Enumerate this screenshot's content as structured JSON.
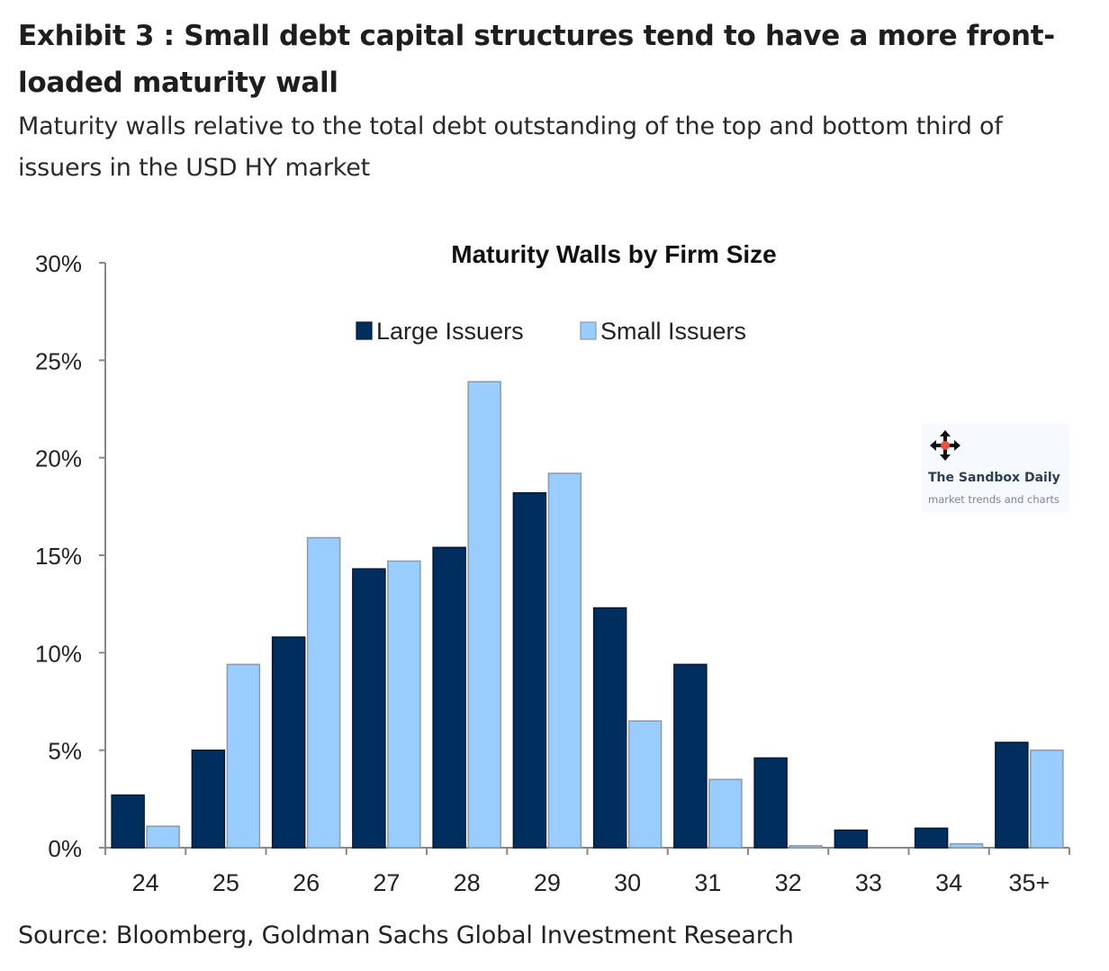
{
  "header": {
    "title": "Exhibit 3 : Small debt capital structures tend to have a more front-loaded maturity wall",
    "subtitle": "Maturity walls relative to the total debt outstanding of the top and bottom third of issuers in the USD HY market"
  },
  "footer": {
    "source": "Source: Bloomberg, Goldman Sachs Global Investment Research"
  },
  "watermark": {
    "name": "The Sandbox Daily",
    "tagline": "market trends and charts",
    "icon": "move-arrows-icon"
  },
  "chart_data": {
    "type": "bar",
    "title": "Maturity Walls by Firm Size",
    "xlabel": "",
    "ylabel": "",
    "categories": [
      "24",
      "25",
      "26",
      "27",
      "28",
      "29",
      "30",
      "31",
      "32",
      "33",
      "34",
      "35+"
    ],
    "series": [
      {
        "name": "Large Issuers",
        "color": "#002f5f",
        "values": [
          2.7,
          5.0,
          10.8,
          14.3,
          15.4,
          18.2,
          12.3,
          9.4,
          4.6,
          0.9,
          1.0,
          5.4
        ]
      },
      {
        "name": "Small Issuers",
        "color": "#99ccff",
        "values": [
          1.1,
          9.4,
          15.9,
          14.7,
          23.9,
          19.2,
          6.5,
          3.5,
          0.1,
          0.0,
          0.2,
          5.0
        ]
      }
    ],
    "ylim": [
      0,
      30
    ],
    "yticks": [
      0,
      5,
      10,
      15,
      20,
      25,
      30
    ],
    "ytick_labels": [
      "0%",
      "5%",
      "10%",
      "15%",
      "20%",
      "25%",
      "30%"
    ],
    "legend_position": "top-center",
    "grid": false
  }
}
